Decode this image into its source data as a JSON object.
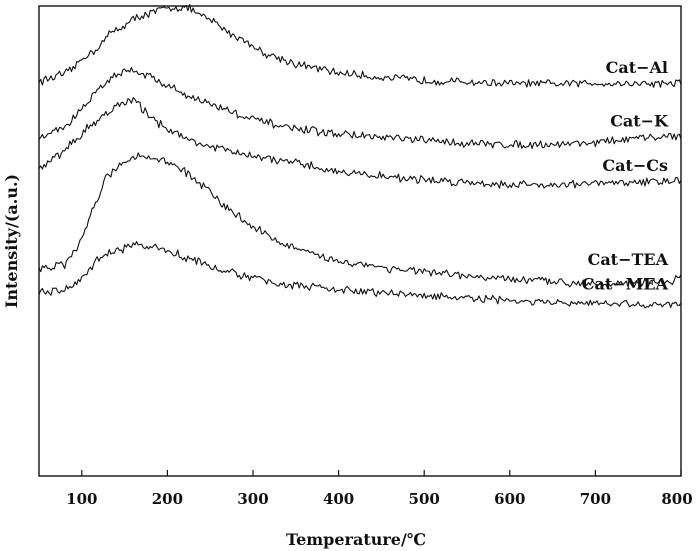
{
  "chart_data": {
    "type": "line",
    "xlabel": "Temperature/℃",
    "ylabel": "Intensity/(a.u.)",
    "xlim": [
      50,
      800
    ],
    "xticks": [
      100,
      200,
      300,
      400,
      500,
      600,
      700,
      800
    ],
    "yticks_shown": false,
    "grid": false,
    "line_color": "#111111",
    "series": [
      {
        "name": "Cat−Al",
        "label_x": 668,
        "points": [
          [
            50,
            0.84
          ],
          [
            80,
            0.855
          ],
          [
            110,
            0.9
          ],
          [
            140,
            0.95
          ],
          [
            170,
            0.98
          ],
          [
            200,
            0.995
          ],
          [
            220,
            0.998
          ],
          [
            250,
            0.97
          ],
          [
            280,
            0.935
          ],
          [
            320,
            0.895
          ],
          [
            360,
            0.872
          ],
          [
            400,
            0.858
          ],
          [
            450,
            0.848
          ],
          [
            500,
            0.842
          ],
          [
            550,
            0.838
          ],
          [
            600,
            0.835
          ],
          [
            650,
            0.834
          ],
          [
            700,
            0.836
          ],
          [
            750,
            0.835
          ],
          [
            800,
            0.836
          ]
        ]
      },
      {
        "name": "Cat−K",
        "label_x": 668,
        "points": [
          [
            50,
            0.72
          ],
          [
            80,
            0.742
          ],
          [
            100,
            0.78
          ],
          [
            120,
            0.825
          ],
          [
            140,
            0.855
          ],
          [
            160,
            0.865
          ],
          [
            180,
            0.85
          ],
          [
            200,
            0.83
          ],
          [
            230,
            0.805
          ],
          [
            260,
            0.785
          ],
          [
            300,
            0.758
          ],
          [
            350,
            0.738
          ],
          [
            400,
            0.728
          ],
          [
            450,
            0.72
          ],
          [
            500,
            0.714
          ],
          [
            550,
            0.708
          ],
          [
            600,
            0.705
          ],
          [
            650,
            0.706
          ],
          [
            700,
            0.71
          ],
          [
            750,
            0.718
          ],
          [
            800,
            0.725
          ]
        ]
      },
      {
        "name": "Cat−Cs",
        "label_x": 668,
        "points": [
          [
            50,
            0.65
          ],
          [
            70,
            0.68
          ],
          [
            90,
            0.71
          ],
          [
            110,
            0.745
          ],
          [
            130,
            0.775
          ],
          [
            145,
            0.79
          ],
          [
            160,
            0.8
          ],
          [
            175,
            0.775
          ],
          [
            190,
            0.75
          ],
          [
            220,
            0.72
          ],
          [
            250,
            0.7
          ],
          [
            300,
            0.68
          ],
          [
            350,
            0.665
          ],
          [
            400,
            0.648
          ],
          [
            450,
            0.638
          ],
          [
            500,
            0.63
          ],
          [
            550,
            0.625
          ],
          [
            600,
            0.62
          ],
          [
            650,
            0.62
          ],
          [
            700,
            0.622
          ],
          [
            750,
            0.625
          ],
          [
            800,
            0.63
          ]
        ]
      },
      {
        "name": "Cat−TEA",
        "label_x": 668,
        "points": [
          [
            50,
            0.44
          ],
          [
            80,
            0.45
          ],
          [
            100,
            0.5
          ],
          [
            115,
            0.58
          ],
          [
            130,
            0.64
          ],
          [
            150,
            0.67
          ],
          [
            170,
            0.68
          ],
          [
            190,
            0.675
          ],
          [
            210,
            0.66
          ],
          [
            240,
            0.62
          ],
          [
            270,
            0.57
          ],
          [
            300,
            0.53
          ],
          [
            340,
            0.49
          ],
          [
            380,
            0.465
          ],
          [
            420,
            0.452
          ],
          [
            470,
            0.44
          ],
          [
            520,
            0.43
          ],
          [
            570,
            0.422
          ],
          [
            620,
            0.416
          ],
          [
            670,
            0.412
          ],
          [
            720,
            0.41
          ],
          [
            760,
            0.411
          ],
          [
            790,
            0.414
          ],
          [
            800,
            0.43
          ]
        ]
      },
      {
        "name": "Cat−MEA",
        "label_x": 668,
        "points": [
          [
            50,
            0.39
          ],
          [
            80,
            0.395
          ],
          [
            100,
            0.42
          ],
          [
            120,
            0.46
          ],
          [
            140,
            0.48
          ],
          [
            160,
            0.49
          ],
          [
            180,
            0.488
          ],
          [
            200,
            0.48
          ],
          [
            230,
            0.46
          ],
          [
            260,
            0.44
          ],
          [
            300,
            0.42
          ],
          [
            350,
            0.405
          ],
          [
            400,
            0.396
          ],
          [
            450,
            0.39
          ],
          [
            500,
            0.384
          ],
          [
            550,
            0.378
          ],
          [
            600,
            0.373
          ],
          [
            650,
            0.368
          ],
          [
            700,
            0.366
          ],
          [
            750,
            0.365
          ],
          [
            800,
            0.364
          ]
        ]
      }
    ]
  }
}
